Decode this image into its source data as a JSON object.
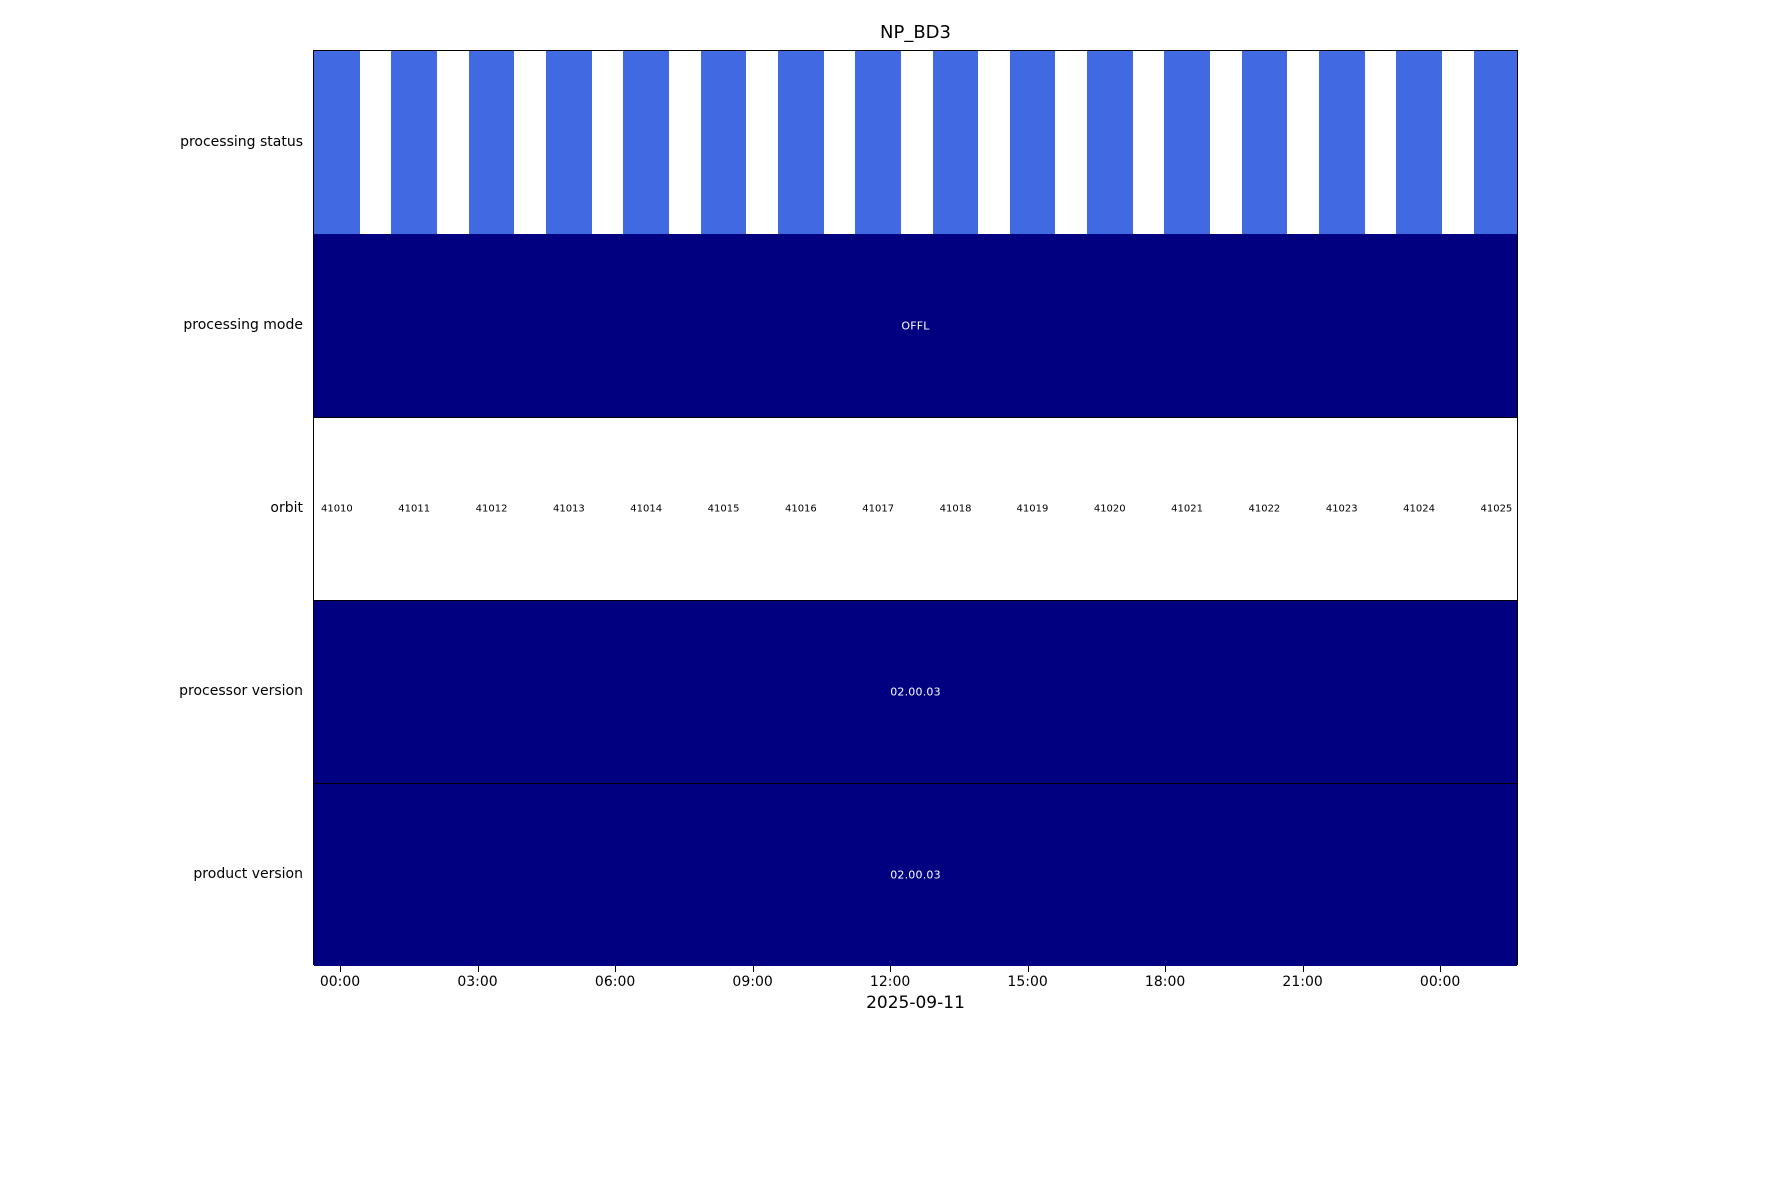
{
  "colors": {
    "status_bar_blue": "#4169E1",
    "span_navy": "#000080",
    "background": "#ffffff",
    "text": "#000000",
    "bar_text": "#ffffff"
  },
  "chart_data": {
    "type": "bar",
    "subtype": "timeline-status",
    "title": "NP_BD3",
    "xlabel": "2025-09-11",
    "grid": false,
    "legend": "none",
    "x_axis": {
      "tick_labels": [
        "00:00",
        "03:00",
        "06:00",
        "09:00",
        "12:00",
        "15:00",
        "18:00",
        "21:00",
        "00:00"
      ],
      "tick_hours": [
        0,
        3,
        6,
        9,
        12,
        15,
        18,
        21,
        24
      ],
      "range_hours": [
        -0.59,
        25.7
      ]
    },
    "rows": [
      {
        "label": "processing status",
        "type": "bars",
        "fill": "#ffffff",
        "bar_color": "#4169E1",
        "bar_width_hours": 1.0,
        "bar_centers_hours": [
          -0.09,
          1.6,
          3.29,
          4.98,
          6.67,
          8.36,
          10.05,
          11.74,
          13.43,
          15.11,
          16.8,
          18.49,
          20.18,
          21.87,
          23.56,
          25.25
        ]
      },
      {
        "label": "processing mode",
        "type": "span",
        "value": "OFFL",
        "fill": "#000080",
        "text_color": "#ffffff"
      },
      {
        "label": "orbit",
        "type": "labels",
        "fill": "#ffffff",
        "border_top": true,
        "values": [
          "41010",
          "41011",
          "41012",
          "41013",
          "41014",
          "41015",
          "41016",
          "41017",
          "41018",
          "41019",
          "41020",
          "41021",
          "41022",
          "41023",
          "41024",
          "41025"
        ],
        "centers_hours": [
          -0.09,
          1.6,
          3.29,
          4.98,
          6.67,
          8.36,
          10.05,
          11.74,
          13.43,
          15.11,
          16.8,
          18.49,
          20.18,
          21.87,
          23.56,
          25.25
        ]
      },
      {
        "label": "processor version",
        "type": "span",
        "value": "02.00.03",
        "fill": "#000080",
        "text_color": "#ffffff",
        "border_top": true
      },
      {
        "label": "product version",
        "type": "span",
        "value": "02.00.03",
        "fill": "#000080",
        "text_color": "#ffffff",
        "border_top": true
      }
    ]
  }
}
